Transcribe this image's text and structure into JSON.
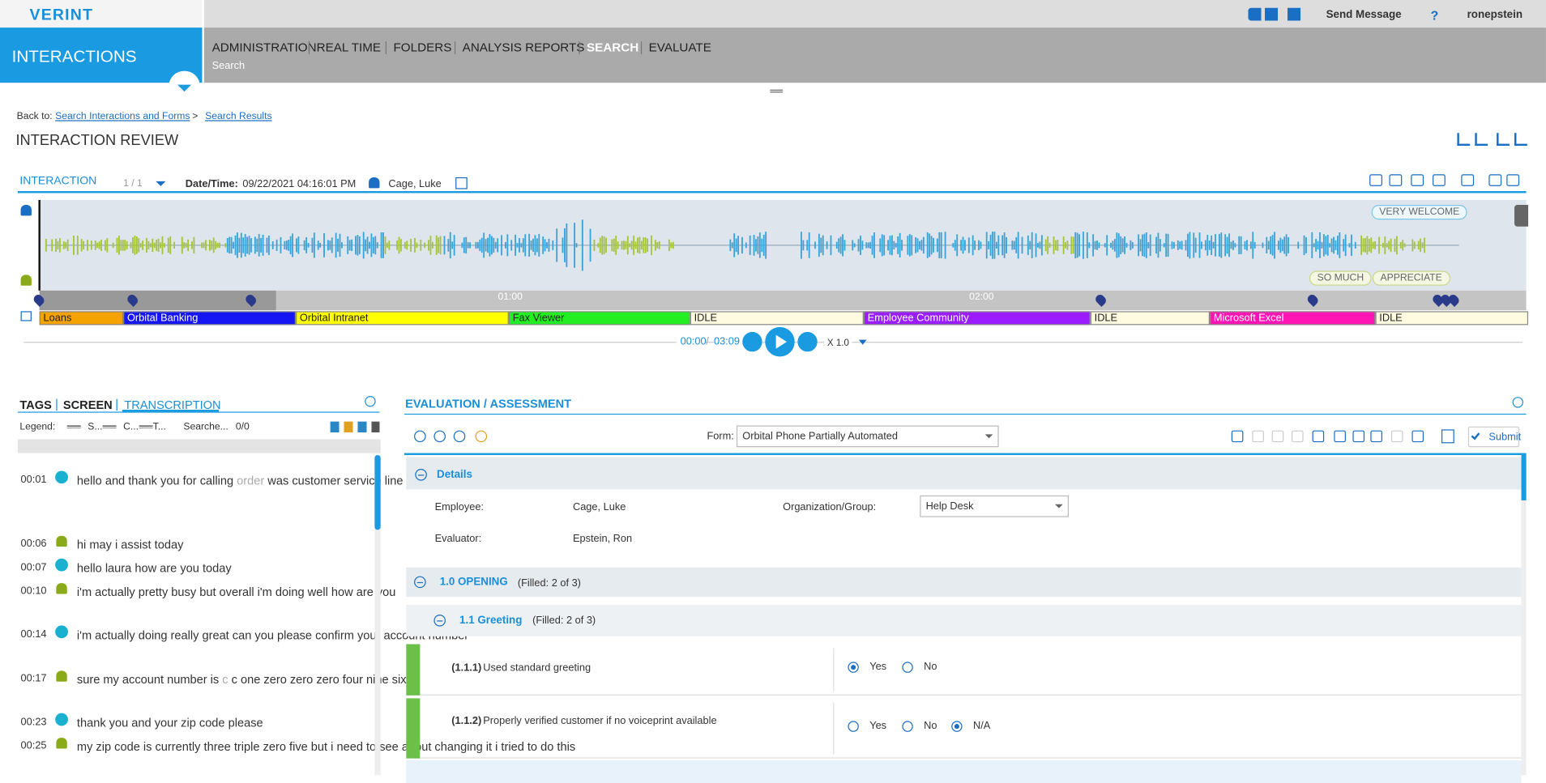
{
  "header": {
    "logo": "VERINT",
    "app": "INTERACTIONS",
    "nav": [
      "ADMINISTRATION",
      "REAL TIME",
      "FOLDERS",
      "ANALYSIS REPORTS",
      "SEARCH",
      "EVALUATE"
    ],
    "active_nav": 4,
    "subnav": "Search",
    "send_message": "Send Message",
    "help": "?",
    "user": "ronepstein"
  },
  "breadcrumb": {
    "label": "Back to:",
    "links": [
      "Search Interactions and Forms",
      "Search Results"
    ],
    "separator": ">"
  },
  "page_title": "INTERACTION REVIEW",
  "interaction": {
    "label": "INTERACTION",
    "count": "1 / 1",
    "datetime_label": "Date/Time:",
    "datetime": "09/22/2021 04:16:01 PM",
    "agent": "Cage, Luke"
  },
  "waveform": {
    "phrases": [
      "VERY WELCOME",
      "SO MUCH",
      "APPRECIATE"
    ],
    "time_marks": [
      "01:00",
      "02:00"
    ]
  },
  "apps": [
    {
      "name": "Loans",
      "color": "#f5a300",
      "text_color": "#222"
    },
    {
      "name": "Orbital Banking",
      "color": "#1616f5",
      "text_color": "#fff"
    },
    {
      "name": "Orbital Intranet",
      "color": "#ffff00",
      "text_color": "#222"
    },
    {
      "name": "Fax Viewer",
      "color": "#22ee22",
      "text_color": "#222"
    },
    {
      "name": "IDLE",
      "color": "#fffbe0",
      "text_color": "#222"
    },
    {
      "name": "Employee Community",
      "color": "#9a1cff",
      "text_color": "#fff"
    },
    {
      "name": "IDLE",
      "color": "#fffbe0",
      "text_color": "#222"
    },
    {
      "name": "Microsoft Excel",
      "color": "#ff14b4",
      "text_color": "#fff"
    },
    {
      "name": "IDLE",
      "color": "#fffbe0",
      "text_color": "#222"
    }
  ],
  "player": {
    "current": "00:00",
    "separator": "/",
    "total": "03:09",
    "speed": "X 1.0"
  },
  "tabs": [
    "TAGS",
    "SCREEN",
    "TRANSCRIPTION"
  ],
  "active_tab": 2,
  "legend": {
    "label": "Legend:",
    "items": [
      "S...",
      "C...",
      "T..."
    ],
    "search": "Searche...",
    "count": "0/0"
  },
  "transcript": [
    {
      "time": "00:01",
      "speaker": "agent",
      "text": [
        "hello and thank you for calling ",
        "order",
        " was customer service line my name is matt how can i help you today"
      ]
    },
    {
      "time": "00:06",
      "speaker": "customer",
      "text": [
        "hi may i assist today"
      ]
    },
    {
      "time": "00:07",
      "speaker": "agent",
      "text": [
        "hello laura how are you today"
      ]
    },
    {
      "time": "00:10",
      "speaker": "customer",
      "text": [
        "i'm actually pretty busy but overall i'm doing well how are you"
      ]
    },
    {
      "time": "00:14",
      "speaker": "agent",
      "text": [
        "i'm actually doing really great can you please confirm your account number"
      ]
    },
    {
      "time": "00:17",
      "speaker": "customer",
      "text": [
        "sure my account number is ",
        "c",
        " c one zero zero zero four nine six"
      ]
    },
    {
      "time": "00:23",
      "speaker": "agent",
      "text": [
        "thank you and your zip code please"
      ]
    },
    {
      "time": "00:25",
      "speaker": "customer",
      "text": [
        "my zip code is currently three triple zero five but i need to see about changing it i tried to do this"
      ]
    }
  ],
  "evaluation": {
    "title": "EVALUATION / ASSESSMENT",
    "form_label": "Form:",
    "form": "Orbital Phone Partially Automated",
    "submit": "Submit",
    "details": {
      "title": "Details",
      "employee_label": "Employee:",
      "employee": "Cage, Luke",
      "org_label": "Organization/Group:",
      "org": "Help Desk",
      "evaluator_label": "Evaluator:",
      "evaluator": "Epstein, Ron"
    },
    "section": {
      "title": "1.0 OPENING",
      "filled": "(Filled: 2 of 3)"
    },
    "subsection": {
      "title": "1.1 Greeting",
      "filled": "(Filled: 2 of 3)"
    },
    "questions": [
      {
        "number": "(1.1.1)",
        "text": "Used standard greeting",
        "options": [
          "Yes",
          "No"
        ],
        "selected": 0
      },
      {
        "number": "(1.1.2)",
        "text": "Properly verified customer if no voiceprint available",
        "options": [
          "Yes",
          "No",
          "N/A"
        ],
        "selected": 2
      }
    ]
  }
}
